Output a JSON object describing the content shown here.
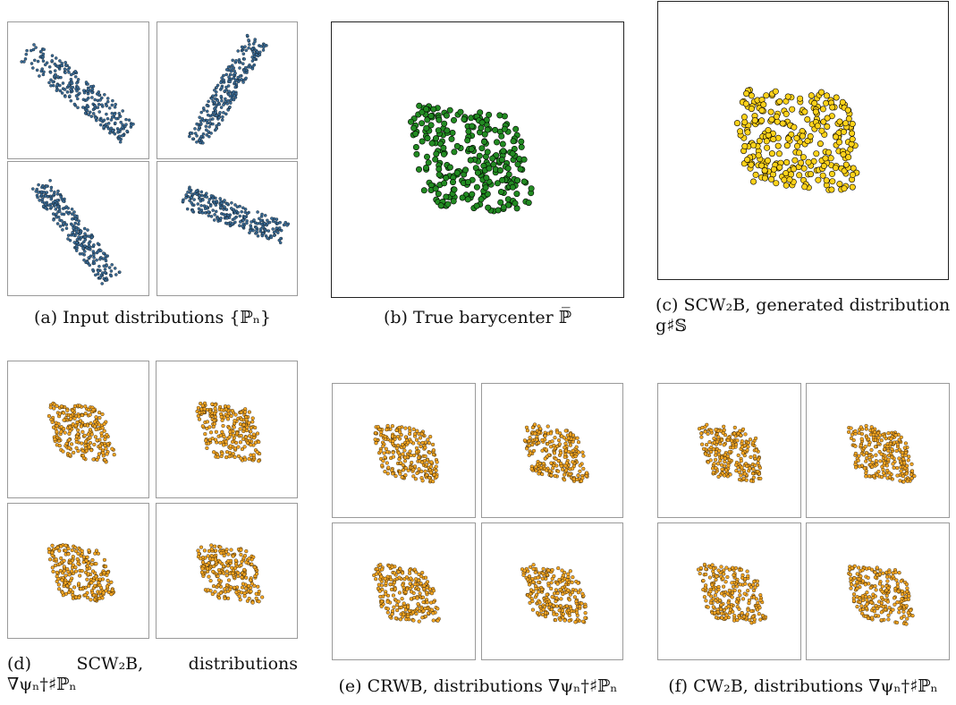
{
  "captions": {
    "a": "(a) Input distributions {ℙₙ}",
    "b": "(b) True barycenter ℙ̅",
    "c_line1": "(c) SCW₂B, generated distribution",
    "c_line2": "g♯𝕊",
    "d_line1": "(d)    SCW₂B,    distributions",
    "d_line2": "∇ψₙ†♯ℙₙ",
    "e": "(e) CRWB, distributions ∇ψₙ†♯ℙₙ",
    "f": "(f) CW₂B, distributions ∇ψₙ†♯ℙₙ"
  },
  "colors": {
    "input_points": "#3a6b96",
    "barycenter_points": "#228b22",
    "generated_points": "#ffd21a",
    "mapped_points": "#f5a623",
    "outline": "#000000"
  },
  "groups": {
    "a": {
      "panel_count": 4,
      "shape": [
        "nw-se diagonal",
        "sw-ne steep",
        "nw-se steep",
        "nw-se shallow"
      ]
    },
    "b": {
      "panel_count": 1,
      "shape": "nw-se rhombus cloud"
    },
    "c": {
      "panel_count": 1,
      "shape": "nw-se rhombus cloud"
    },
    "d": {
      "panel_count": 4,
      "shape": "nw-se rhombus cloud"
    },
    "e": {
      "panel_count": 4,
      "shape": "nw-se rhombus cloud"
    },
    "f": {
      "panel_count": 4,
      "shape": "nw-se rhombus cloud"
    }
  }
}
